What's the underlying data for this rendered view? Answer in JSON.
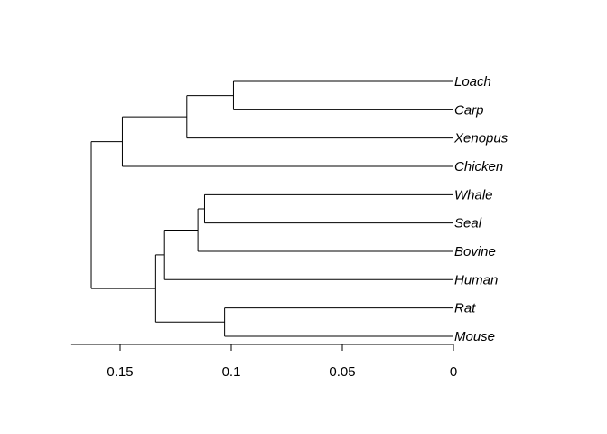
{
  "tree": {
    "leaves": [
      "Loach",
      "Carp",
      "Xenopus",
      "Chicken",
      "Whale",
      "Seal",
      "Bovine",
      "Human",
      "Rat",
      "Mouse"
    ],
    "nodes": [
      {
        "id": "loach_carp",
        "height": 0.099,
        "children": [
          "Loach",
          "Carp"
        ]
      },
      {
        "id": "fish_xenopus",
        "height": 0.12,
        "children": [
          "loach_carp",
          "Xenopus"
        ]
      },
      {
        "id": "nonmammal",
        "height": 0.149,
        "children": [
          "fish_xenopus",
          "Chicken"
        ]
      },
      {
        "id": "whale_seal",
        "height": 0.112,
        "children": [
          "Whale",
          "Seal"
        ]
      },
      {
        "id": "whale_seal_bovine",
        "height": 0.115,
        "children": [
          "whale_seal",
          "Bovine"
        ]
      },
      {
        "id": "with_human",
        "height": 0.13,
        "children": [
          "whale_seal_bovine",
          "Human"
        ]
      },
      {
        "id": "rat_mouse",
        "height": 0.103,
        "children": [
          "Rat",
          "Mouse"
        ]
      },
      {
        "id": "mammals",
        "height": 0.134,
        "children": [
          "with_human",
          "rat_mouse"
        ]
      },
      {
        "id": "root",
        "height": 0.163,
        "children": [
          "nonmammal",
          "mammals"
        ]
      }
    ]
  },
  "axis": {
    "ticks": [
      0.15,
      0.1,
      0.05,
      0
    ],
    "tick_labels": [
      "0.15",
      "0.1",
      "0.05",
      "0"
    ],
    "range": [
      0.172,
      0
    ]
  }
}
